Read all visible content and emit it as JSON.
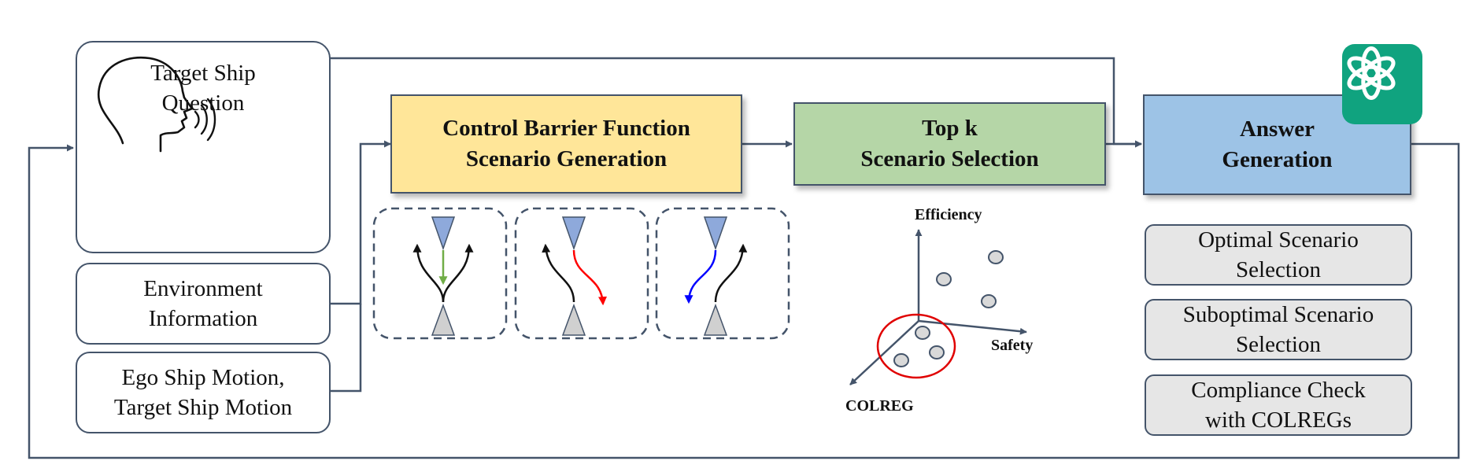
{
  "colors": {
    "line": "#44546a",
    "cbf_fill": "#ffe699",
    "topk_fill": "#b5d6a7",
    "answer_fill": "#9dc3e6",
    "output_fill": "#e6e6e6",
    "logo_bg": "#10a37f",
    "ship_blue": "#8ea9db",
    "ship_gray": "#d0d0d0",
    "path_green": "#70ad47",
    "path_red": "#ff0000",
    "path_blue": "#0000ff",
    "circle_red": "#e00000"
  },
  "inputs": {
    "question": {
      "line1": "Target Ship",
      "line2": "Question",
      "icon": "speaking-head-icon"
    },
    "environment": {
      "line1": "Environment",
      "line2": "Information"
    },
    "motion": {
      "line1": "Ego Ship Motion,",
      "line2": "Target Ship Motion"
    }
  },
  "stages": {
    "cbf": {
      "line1": "Control Barrier Function",
      "line2": "Scenario Generation"
    },
    "topk": {
      "line1": "Top k",
      "line2": "Scenario Selection"
    },
    "answer": {
      "line1": "Answer",
      "line2": "Generation",
      "badge_icon": "openai-logo-icon"
    }
  },
  "scenarios": [
    {
      "name": "scenario-head-on-straight",
      "icon": "ship-encounter-icon"
    },
    {
      "name": "scenario-red-deviation",
      "icon": "ship-encounter-icon"
    },
    {
      "name": "scenario-blue-deviation",
      "icon": "ship-encounter-icon"
    }
  ],
  "selection_plot": {
    "axes": {
      "y": "Efficiency",
      "x": "Safety",
      "z": "COLREG"
    },
    "points_count": 6,
    "highlighted_count": 3
  },
  "outputs": [
    {
      "line1": "Optimal Scenario",
      "line2": "Selection"
    },
    {
      "line1": "Suboptimal Scenario",
      "line2": "Selection"
    },
    {
      "line1": "Compliance Check",
      "line2": "with COLREGs"
    }
  ]
}
